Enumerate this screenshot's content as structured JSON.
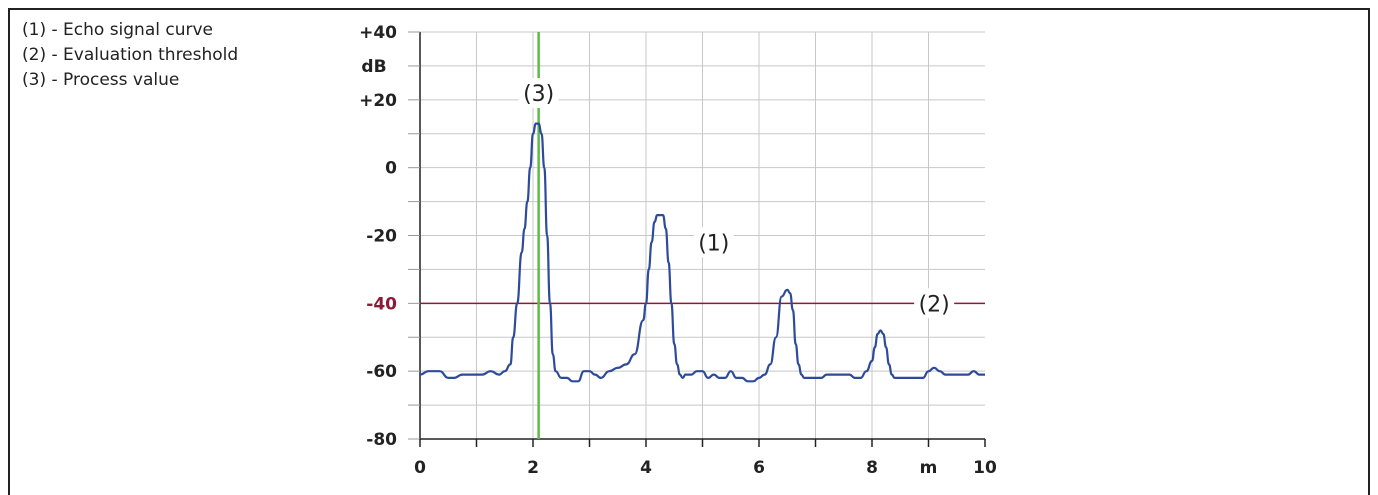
{
  "legend": {
    "items": [
      "(1) - Echo signal curve",
      "(2) - Evaluation threshold",
      "(3) - Process value"
    ]
  },
  "chart_data": {
    "type": "line",
    "xlim": [
      0,
      10
    ],
    "ylim": [
      -80,
      40
    ],
    "x_ticks": [
      "0",
      "2",
      "4",
      "6",
      "8",
      "10"
    ],
    "x_unit": "m",
    "y_ticks": [
      "+40",
      "+20",
      "0",
      "-20",
      "-40",
      "-60",
      "-80"
    ],
    "y_unit": "dB",
    "grid": true,
    "series": [
      {
        "id": "echo",
        "color": "#2e4a9a",
        "x": [
          0,
          0.15,
          0.35,
          0.5,
          0.6,
          0.75,
          0.9,
          1.0,
          1.1,
          1.25,
          1.4,
          1.5,
          1.6,
          1.65,
          1.72,
          1.8,
          1.85,
          1.9,
          1.95,
          2.0,
          2.05,
          2.1,
          2.15,
          2.2,
          2.25,
          2.3,
          2.35,
          2.4,
          2.5,
          2.6,
          2.7,
          2.8,
          2.9,
          3.0,
          3.1,
          3.2,
          3.35,
          3.5,
          3.65,
          3.8,
          3.95,
          4.0,
          4.05,
          4.1,
          4.15,
          4.2,
          4.3,
          4.35,
          4.4,
          4.45,
          4.5,
          4.55,
          4.6,
          4.65,
          4.7,
          4.8,
          4.9,
          5.0,
          5.1,
          5.2,
          5.3,
          5.4,
          5.5,
          5.6,
          5.7,
          5.8,
          5.9,
          6.0,
          6.1,
          6.2,
          6.3,
          6.4,
          6.5,
          6.55,
          6.6,
          6.65,
          6.7,
          6.75,
          6.8,
          6.9,
          7.0,
          7.1,
          7.2,
          7.3,
          7.4,
          7.5,
          7.6,
          7.7,
          7.8,
          7.9,
          8.0,
          8.05,
          8.1,
          8.15,
          8.2,
          8.25,
          8.3,
          8.35,
          8.4,
          8.5,
          8.6,
          8.7,
          8.8,
          8.9,
          9.0,
          9.1,
          9.2,
          9.3,
          9.4,
          9.5,
          9.6,
          9.7,
          9.8,
          9.9,
          10.0
        ],
        "y": [
          -61,
          -60,
          -60,
          -62,
          -62,
          -61,
          -61,
          -61,
          -61,
          -60,
          -61,
          -60,
          -58,
          -50,
          -40,
          -25,
          -18,
          -10,
          0,
          10,
          13,
          13,
          10,
          0,
          -20,
          -40,
          -55,
          -60,
          -62,
          -62,
          -63,
          -63,
          -60,
          -60,
          -61,
          -62,
          -60,
          -59,
          -58,
          -55,
          -45,
          -40,
          -30,
          -22,
          -16,
          -14,
          -14,
          -18,
          -28,
          -40,
          -52,
          -58,
          -61,
          -62,
          -61,
          -61,
          -60,
          -60,
          -62,
          -61,
          -62,
          -62,
          -60,
          -62,
          -62,
          -63,
          -63,
          -62,
          -61,
          -58,
          -50,
          -38,
          -36,
          -37,
          -42,
          -52,
          -58,
          -61,
          -62,
          -62,
          -62,
          -62,
          -61,
          -61,
          -61,
          -61,
          -61,
          -62,
          -62,
          -60,
          -57,
          -53,
          -49,
          -48,
          -49,
          -53,
          -58,
          -61,
          -62,
          -62,
          -62,
          -62,
          -62,
          -62,
          -60,
          -59,
          -60,
          -61,
          -61,
          -61,
          -61,
          -61,
          -60,
          -61,
          -61
        ]
      }
    ],
    "threshold": {
      "label": "(2)",
      "y": -40,
      "tick_label": "-40",
      "color": "#8a1c3a"
    },
    "process_value": {
      "label": "(3)",
      "x": 2.1,
      "color": "#5dbb46"
    },
    "annotations": [
      {
        "text": "(1)",
        "x": 5.2,
        "y": -22
      },
      {
        "text": "(2)",
        "x": 9.1,
        "y": -40
      },
      {
        "text": "(3)",
        "x": 2.1,
        "y": 22
      }
    ]
  }
}
